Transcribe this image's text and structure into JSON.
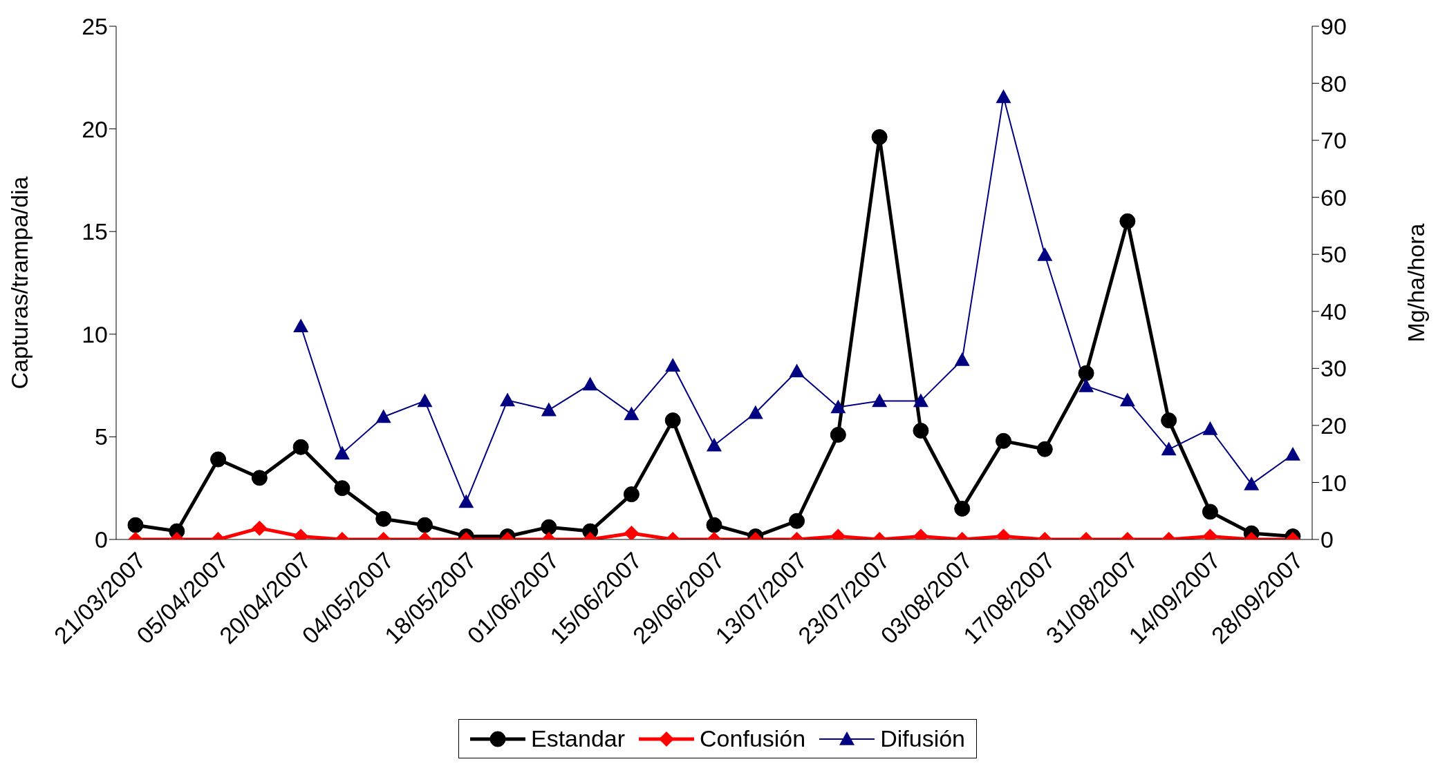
{
  "chart_data": {
    "type": "line",
    "ylabel": "Capturas/trampa/dia",
    "y2label": "Mg/ha/hora",
    "categories": [
      "21/03/2007",
      null,
      "05/04/2007",
      null,
      "20/04/2007",
      null,
      "04/05/2007",
      null,
      "18/05/2007",
      null,
      "01/06/2007",
      null,
      "15/06/2007",
      null,
      "29/06/2007",
      null,
      "13/07/2007",
      null,
      "23/07/2007",
      null,
      "03/08/2007",
      null,
      "17/08/2007",
      null,
      "31/08/2007",
      null,
      "14/09/2007",
      null,
      "28/09/2007"
    ],
    "series": [
      {
        "name": "Estandar",
        "color": "#000000",
        "marker": "circle",
        "values": [
          0.7,
          0.4,
          3.9,
          3.0,
          4.5,
          2.5,
          1.0,
          0.7,
          0.15,
          0.15,
          0.6,
          0.4,
          2.2,
          5.8,
          0.7,
          0.15,
          0.9,
          5.1,
          19.6,
          5.3,
          1.5,
          4.8,
          4.4,
          8.1,
          15.5,
          5.8,
          1.35,
          0.3,
          0.15
        ]
      },
      {
        "name": "Confusión",
        "color": "#ff0000",
        "marker": "diamond",
        "values": [
          0,
          0,
          0,
          0.55,
          0.15,
          0,
          0,
          0,
          0,
          0,
          0,
          0,
          0.3,
          0,
          0,
          0,
          0,
          0.15,
          0,
          0.15,
          0,
          0.15,
          0,
          0,
          0,
          0,
          0.15,
          0,
          0
        ]
      },
      {
        "name": "Difusión",
        "color": "#000080",
        "marker": "triangle",
        "axis": "y2",
        "values": [
          null,
          null,
          null,
          null,
          37.4,
          15.1,
          21.5,
          24.3,
          6.6,
          24.4,
          22.7,
          27.2,
          22.0,
          30.5,
          16.5,
          22.2,
          29.5,
          23.2,
          24.3,
          24.3,
          31.5,
          77.6,
          49.9,
          26.9,
          24.4,
          15.8,
          19.4,
          9.7,
          14.9
        ]
      }
    ],
    "ylim": [
      0,
      25
    ],
    "yticks": [
      0,
      5,
      10,
      15,
      20,
      25
    ],
    "y2lim": [
      0,
      90
    ],
    "y2ticks": [
      0,
      10,
      20,
      30,
      40,
      50,
      60,
      70,
      80,
      90
    ],
    "grid": false,
    "legend": "bottom",
    "line_style": "solid"
  }
}
